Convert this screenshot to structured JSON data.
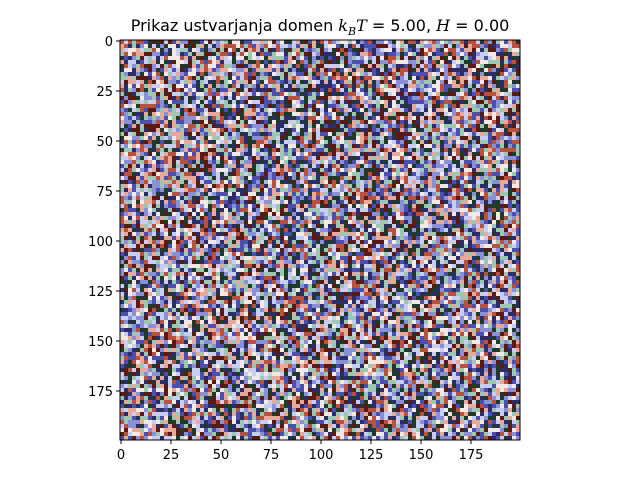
{
  "chart_data": {
    "type": "heatmap",
    "title": {
      "prefix": "Prikaz ustvarjanja domen ",
      "k": "k",
      "sub": "B",
      "T": "T",
      "eq1": " = 5.00, ",
      "H": "H",
      "eq2": " = 0.00"
    },
    "xlabel": "",
    "ylabel": "",
    "grid_size": [
      200,
      200
    ],
    "x_ticks": [
      "0",
      "25",
      "50",
      "75",
      "100",
      "125",
      "150",
      "175"
    ],
    "y_ticks": [
      "0",
      "25",
      "50",
      "75",
      "100",
      "125",
      "150",
      "175"
    ],
    "x_tick_values": [
      0,
      25,
      50,
      75,
      100,
      125,
      150,
      175
    ],
    "y_tick_values": [
      0,
      25,
      50,
      75,
      100,
      125,
      150,
      175
    ],
    "xlim": [
      0,
      200
    ],
    "ylim": [
      200,
      0
    ],
    "grid": false,
    "pattern": "random spin field (disordered domains)",
    "palette": [
      "#2b2d66",
      "#4a4fb0",
      "#8a90d8",
      "#c8cdf2",
      "#f2e9e4",
      "#e6a99a",
      "#b8523f",
      "#5a1a14",
      "#1f3a2a",
      "#9cc7b0"
    ]
  }
}
